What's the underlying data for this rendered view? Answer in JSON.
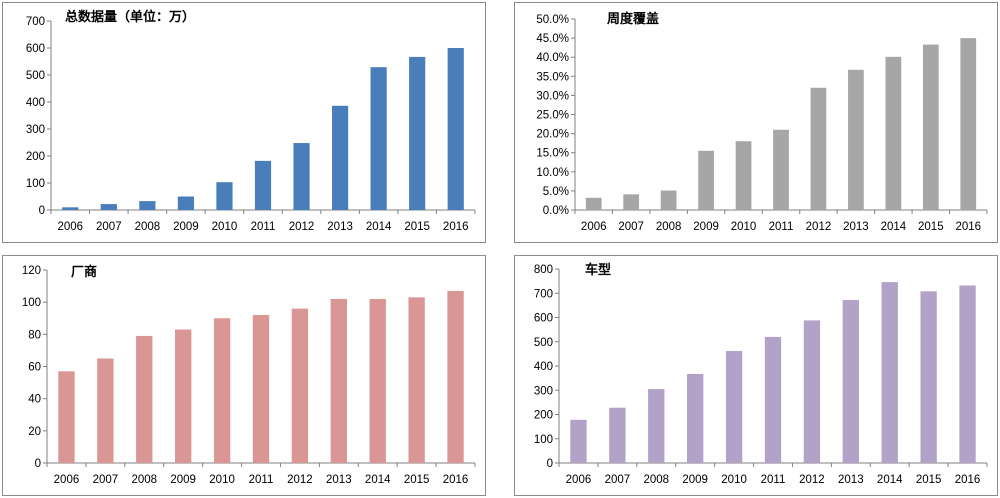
{
  "chart_data": [
    {
      "type": "bar",
      "title": "总数据量（单位：万）",
      "categories": [
        "2006",
        "2007",
        "2008",
        "2009",
        "2010",
        "2011",
        "2012",
        "2013",
        "2014",
        "2015",
        "2016"
      ],
      "values": [
        10,
        22,
        33,
        50,
        103,
        182,
        248,
        386,
        529,
        567,
        600
      ],
      "ylim": [
        0,
        700
      ],
      "yticks": [
        0,
        100,
        200,
        300,
        400,
        500,
        600,
        700
      ],
      "ytick_labels": [
        "0",
        "100",
        "200",
        "300",
        "400",
        "500",
        "600",
        "700"
      ],
      "color": "#4a7ebb",
      "grid": false,
      "legend": "none"
    },
    {
      "type": "bar",
      "title": "周度覆盖",
      "categories": [
        "2006",
        "2007",
        "2008",
        "2009",
        "2010",
        "2011",
        "2012",
        "2013",
        "2014",
        "2015",
        "2016"
      ],
      "values": [
        3.2,
        4.1,
        5.1,
        15.5,
        18.0,
        21.0,
        32.0,
        36.7,
        40.1,
        43.3,
        45.0
      ],
      "ylim": [
        0,
        50
      ],
      "yticks": [
        0,
        5,
        10,
        15,
        20,
        25,
        30,
        35,
        40,
        45,
        50
      ],
      "ytick_labels": [
        "0.0%",
        "5.0%",
        "10.0%",
        "15.0%",
        "20.0%",
        "25.0%",
        "30.0%",
        "35.0%",
        "40.0%",
        "45.0%",
        "50.0%"
      ],
      "color": "#a6a6a6",
      "grid": false,
      "legend": "none"
    },
    {
      "type": "bar",
      "title": "厂商",
      "categories": [
        "2006",
        "2007",
        "2008",
        "2009",
        "2010",
        "2011",
        "2012",
        "2013",
        "2014",
        "2015",
        "2016"
      ],
      "values": [
        57,
        65,
        79,
        83,
        90,
        92,
        96,
        102,
        102,
        103,
        107
      ],
      "ylim": [
        0,
        120
      ],
      "yticks": [
        0,
        20,
        40,
        60,
        80,
        100,
        120
      ],
      "ytick_labels": [
        "0",
        "20",
        "40",
        "60",
        "80",
        "100",
        "120"
      ],
      "color": "#d99694",
      "grid": false,
      "legend": "none"
    },
    {
      "type": "bar",
      "title": "车型",
      "categories": [
        "2006",
        "2007",
        "2008",
        "2009",
        "2010",
        "2011",
        "2012",
        "2013",
        "2014",
        "2015",
        "2016"
      ],
      "values": [
        178,
        228,
        305,
        367,
        462,
        520,
        588,
        672,
        746,
        708,
        732
      ],
      "ylim": [
        0,
        800
      ],
      "yticks": [
        0,
        100,
        200,
        300,
        400,
        500,
        600,
        700,
        800
      ],
      "ytick_labels": [
        "0",
        "100",
        "200",
        "300",
        "400",
        "500",
        "600",
        "700",
        "800"
      ],
      "color": "#b3a2c7",
      "grid": false,
      "legend": "none"
    }
  ]
}
